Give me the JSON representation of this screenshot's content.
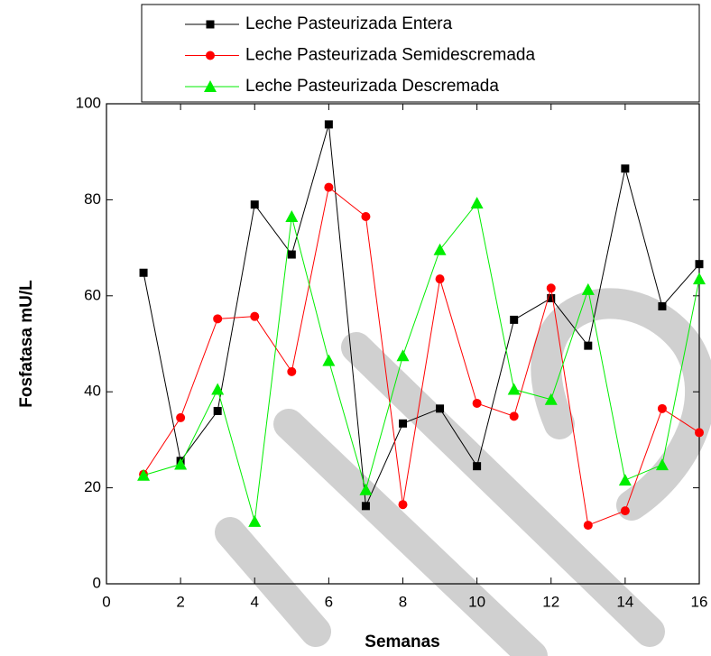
{
  "chart_data": {
    "type": "line",
    "x_label": "Semanas",
    "y_label": "Fosfatasa mU/L",
    "x": [
      1,
      2,
      3,
      4,
      5,
      6,
      7,
      8,
      9,
      10,
      11,
      12,
      13,
      14,
      15,
      16
    ],
    "series": [
      {
        "name": "Leche Pasteurizada Entera",
        "color": "#000000",
        "marker": "square",
        "values": [
          64.8,
          25.6,
          36,
          79,
          68.6,
          95.7,
          16.2,
          33.4,
          36.5,
          24.5,
          55,
          59.5,
          49.6,
          86.5,
          57.8,
          66.6
        ]
      },
      {
        "name": "Leche Pasteurizada Semidescremada",
        "color": "#ff0000",
        "marker": "circle",
        "values": [
          22.8,
          34.6,
          55.2,
          55.7,
          44.2,
          82.6,
          76.5,
          16.5,
          63.5,
          37.6,
          34.9,
          61.6,
          12.2,
          15.2,
          36.5,
          31.5
        ]
      },
      {
        "name": "Leche Pasteurizada Descremada",
        "color": "#00ee00",
        "marker": "triangle",
        "values": [
          22.6,
          24.9,
          40.5,
          13,
          76.5,
          46.5,
          19.6,
          47.5,
          69.6,
          79.3,
          40.5,
          38.4,
          61.3,
          21.6,
          24.8,
          63.5
        ]
      }
    ],
    "xlim": [
      0,
      16
    ],
    "xticks": [
      0,
      2,
      4,
      6,
      8,
      10,
      12,
      14,
      16
    ],
    "ylim": [
      0,
      100
    ],
    "yticks": [
      0,
      20,
      40,
      60,
      80,
      100
    ],
    "legend": "top"
  }
}
